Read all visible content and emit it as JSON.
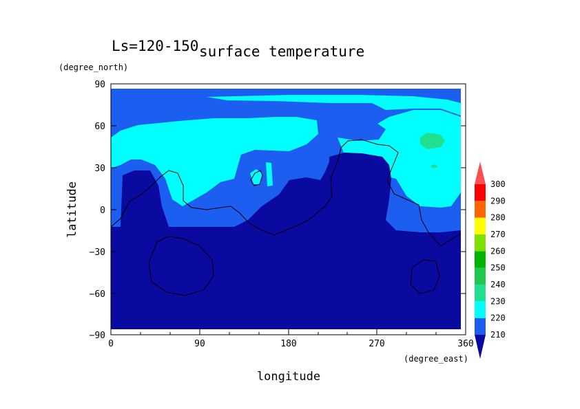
{
  "chart_data": {
    "type": "heatmap",
    "title": "surface temperature",
    "subtitle": "Ls=120-150",
    "xlabel": "longitude",
    "ylabel": "latitude",
    "x_unit": "(degree_east)",
    "y_unit": "(degree_north)",
    "xlim": [
      0,
      360
    ],
    "ylim": [
      -90,
      90
    ],
    "x_ticks": [
      "0",
      "90",
      "180",
      "270",
      "360"
    ],
    "y_ticks": [
      "90",
      "60",
      "30",
      "0",
      "−30",
      "−60",
      "−90"
    ],
    "grid": false,
    "colorbar": {
      "levels": [
        "210",
        "220",
        "230",
        "240",
        "250",
        "260",
        "270",
        "280",
        "290",
        "300"
      ],
      "colors": [
        "#0a0aa0",
        "#1c5ef0",
        "#00ffff",
        "#20e090",
        "#20c850",
        "#00b400",
        "#80e000",
        "#ffff00",
        "#ff6600",
        "#ff0000",
        "#ff5050"
      ],
      "extend": "both"
    },
    "contour_levels": [
      {
        "label": "<210",
        "color": "#0a0aa0",
        "regions": [
          "southern hemisphere and equatorial lowlands"
        ]
      },
      {
        "label": "210-220",
        "color": "#1c5ef0",
        "regions": [
          "northern high latitudes",
          "equatorial band"
        ]
      },
      {
        "label": "220-230",
        "color": "#00ffff",
        "regions": [
          "northern mid latitudes",
          "near north pole"
        ]
      },
      {
        "label": "230-240",
        "color": "#20e090",
        "regions": [
          "small patch near 320E 50N"
        ]
      }
    ]
  }
}
